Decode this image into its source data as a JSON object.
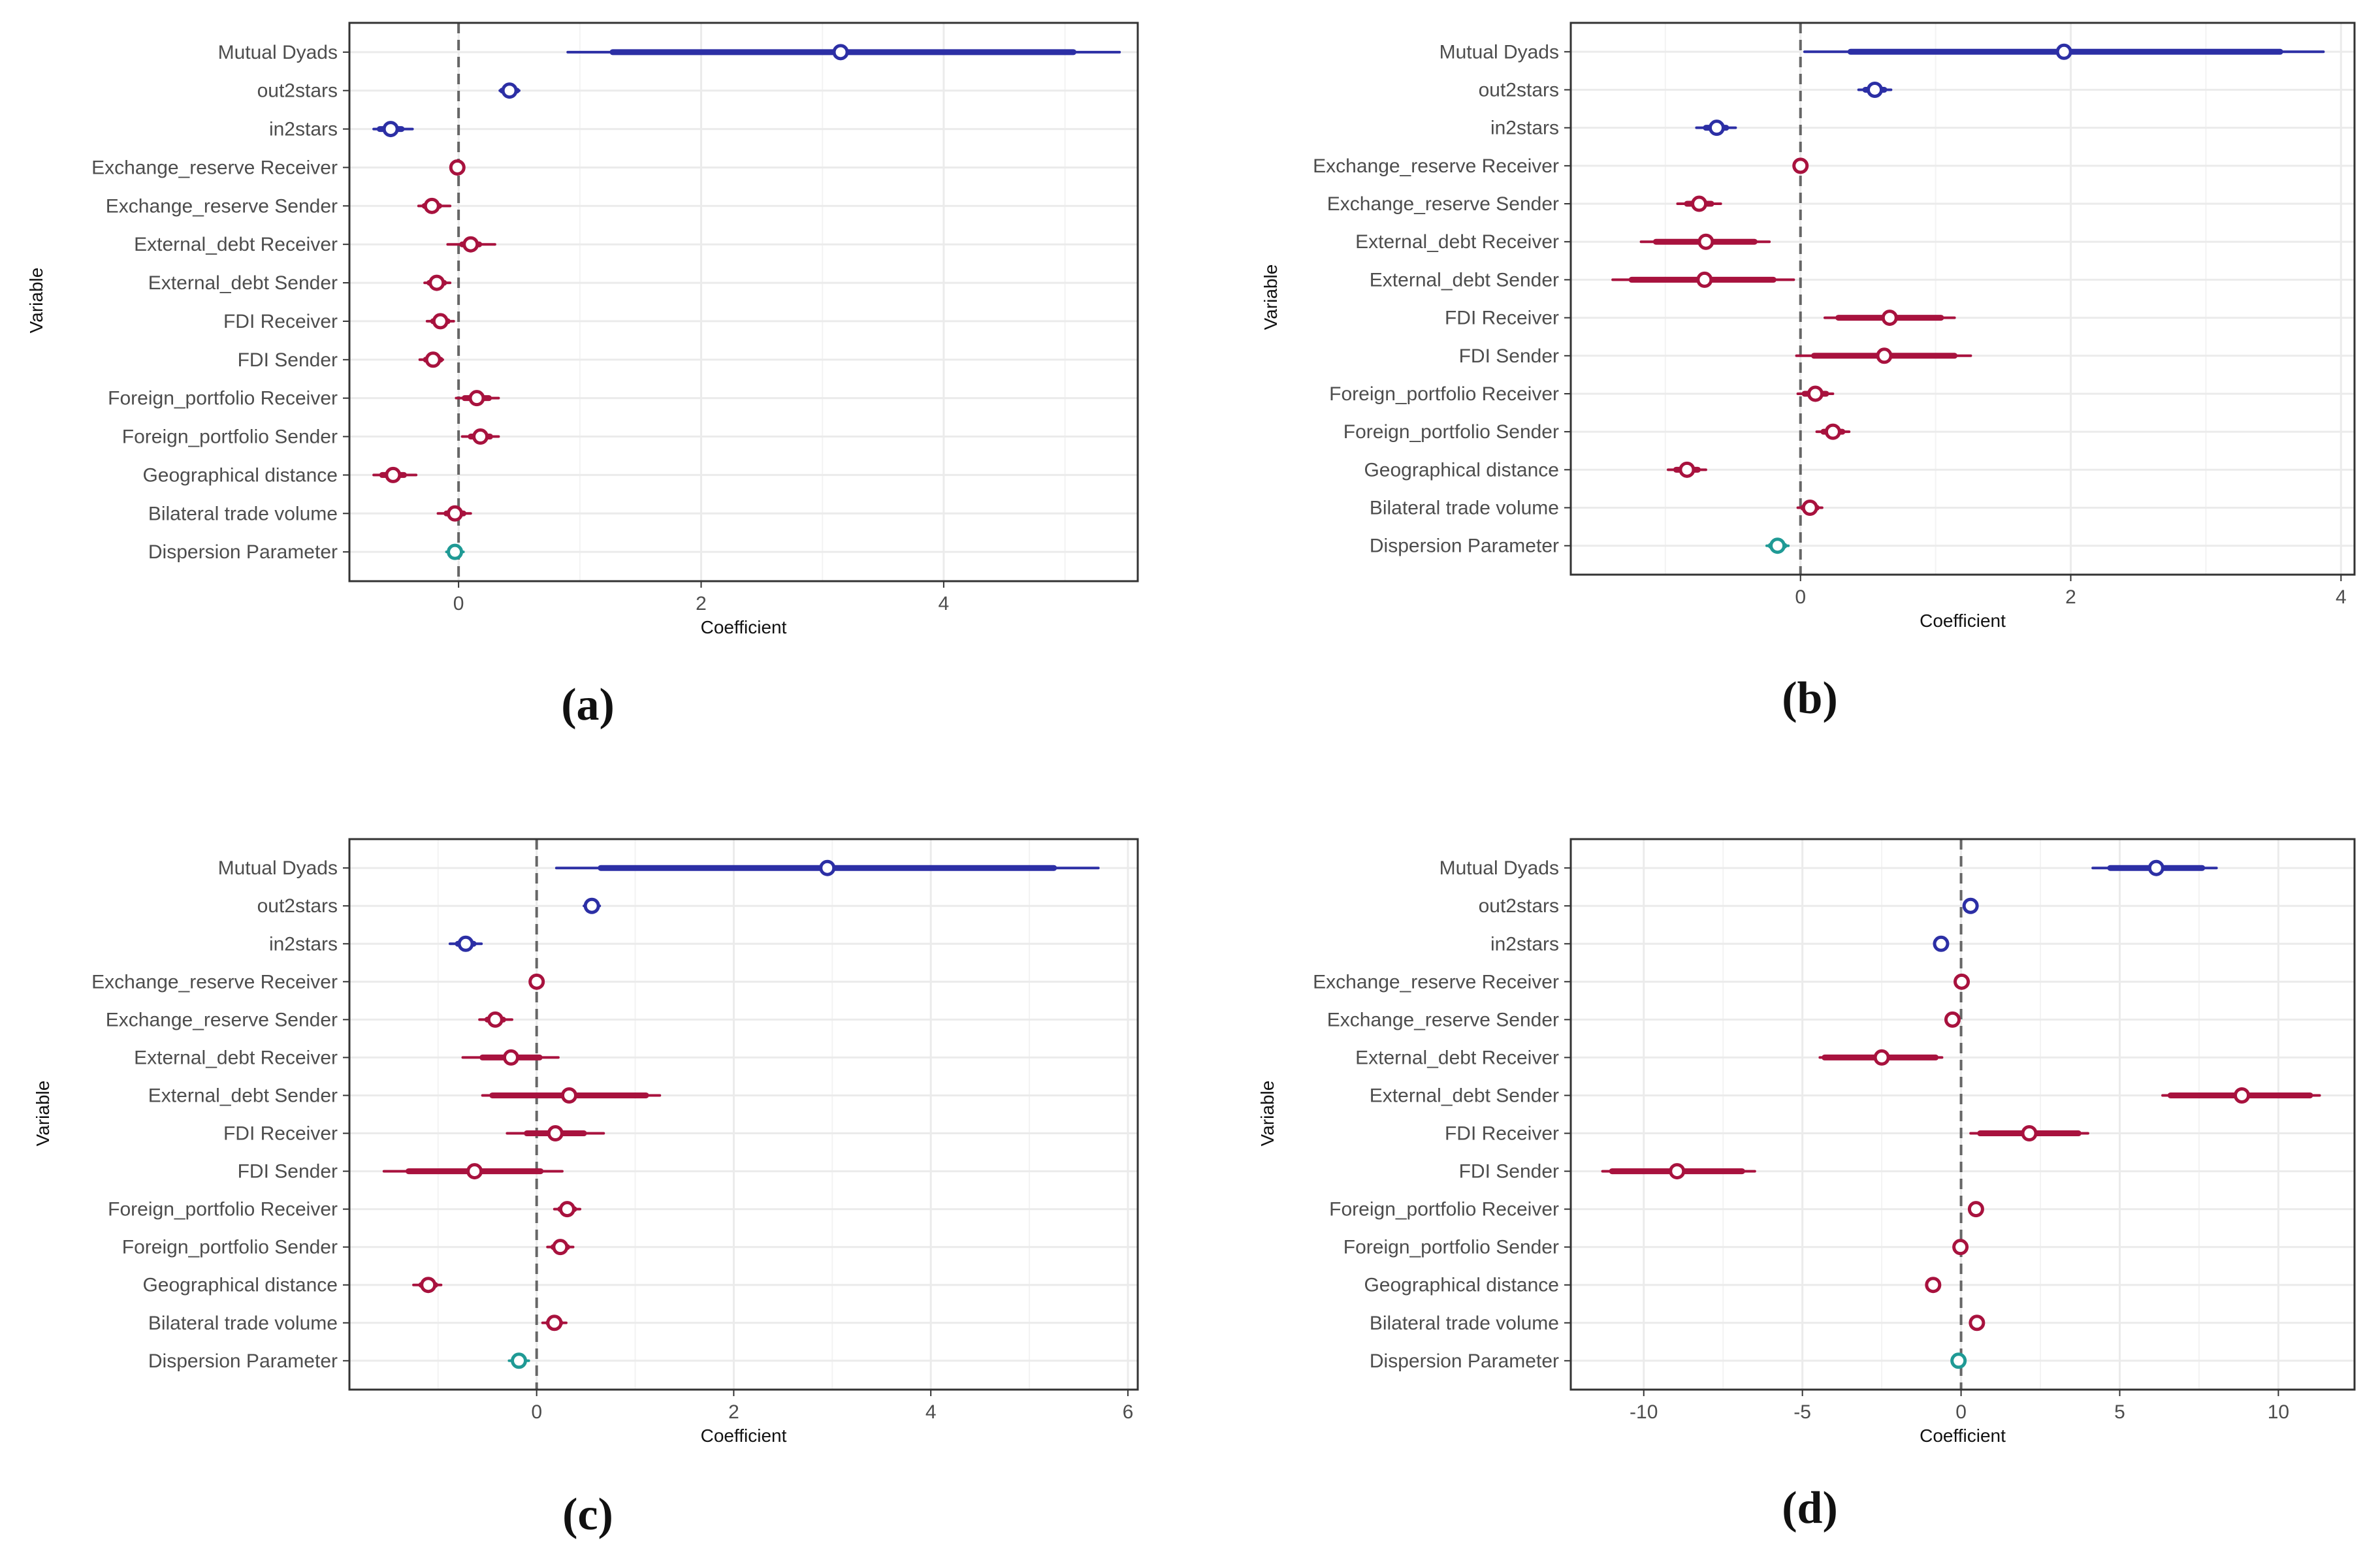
{
  "colors": {
    "network": "#2C2FA5",
    "covariate": "#A8123E",
    "dispersion": "#1F9A95",
    "grid": "#EBEBEB",
    "zero_line": "#666666",
    "axis_text": "#4D4D4D"
  },
  "chart_data": [
    {
      "panel": "(a)",
      "type": "forest",
      "title": "",
      "xlabel": "Coefficient",
      "ylabel": "Variable",
      "xlim": [
        -0.9,
        5.6
      ],
      "xticks": [
        0,
        2,
        4
      ],
      "grid": true,
      "categories": [
        "Mutual Dyads",
        "out2stars",
        "in2stars",
        "Exchange_reserve Receiver",
        "Exchange_reserve Sender",
        "External_debt Receiver",
        "External_debt Sender",
        "FDI Receiver",
        "FDI Sender",
        "Foreign_portfolio Receiver",
        "Foreign_portfolio Sender",
        "Geographical distance",
        "Bilateral trade volume",
        "Dispersion Parameter"
      ],
      "groups": [
        "network",
        "network",
        "network",
        "covariate",
        "covariate",
        "covariate",
        "covariate",
        "covariate",
        "covariate",
        "covariate",
        "covariate",
        "covariate",
        "covariate",
        "dispersion"
      ],
      "estimates": [
        3.15,
        0.42,
        -0.56,
        -0.01,
        -0.22,
        0.1,
        -0.18,
        -0.15,
        -0.21,
        0.15,
        0.18,
        -0.54,
        -0.03,
        -0.03
      ],
      "ci_inner": [
        [
          1.27,
          5.07
        ],
        [
          0.36,
          0.48
        ],
        [
          -0.65,
          -0.47
        ],
        [
          -0.02,
          0.0
        ],
        [
          -0.28,
          -0.16
        ],
        [
          0.03,
          0.17
        ],
        [
          -0.24,
          -0.12
        ],
        [
          -0.21,
          -0.09
        ],
        [
          -0.27,
          -0.15
        ],
        [
          0.05,
          0.25
        ],
        [
          0.1,
          0.26
        ],
        [
          -0.63,
          -0.45
        ],
        [
          -0.1,
          0.04
        ],
        [
          -0.07,
          0.01
        ]
      ],
      "ci_outer": [
        [
          0.9,
          5.45
        ],
        [
          0.34,
          0.5
        ],
        [
          -0.7,
          -0.38
        ],
        [
          -0.03,
          0.01
        ],
        [
          -0.33,
          -0.07
        ],
        [
          -0.09,
          0.3
        ],
        [
          -0.28,
          -0.07
        ],
        [
          -0.26,
          -0.04
        ],
        [
          -0.32,
          -0.13
        ],
        [
          -0.02,
          0.33
        ],
        [
          0.03,
          0.33
        ],
        [
          -0.7,
          -0.35
        ],
        [
          -0.17,
          0.1
        ],
        [
          -0.1,
          0.04
        ]
      ],
      "zero_line": 0
    },
    {
      "panel": "(b)",
      "type": "forest",
      "title": "",
      "xlabel": "Coefficient",
      "ylabel": "Variable",
      "xlim": [
        -1.7,
        4.1
      ],
      "xticks": [
        0,
        2,
        4
      ],
      "grid": true,
      "categories": [
        "Mutual Dyads",
        "out2stars",
        "in2stars",
        "Exchange_reserve Receiver",
        "Exchange_reserve Sender",
        "External_debt Receiver",
        "External_debt Sender",
        "FDI Receiver",
        "FDI Sender",
        "Foreign_portfolio Receiver",
        "Foreign_portfolio Sender",
        "Geographical distance",
        "Bilateral trade volume",
        "Dispersion Parameter"
      ],
      "groups": [
        "network",
        "network",
        "network",
        "covariate",
        "covariate",
        "covariate",
        "covariate",
        "covariate",
        "covariate",
        "covariate",
        "covariate",
        "covariate",
        "covariate",
        "dispersion"
      ],
      "estimates": [
        1.95,
        0.55,
        -0.62,
        0.0,
        -0.75,
        -0.7,
        -0.71,
        0.66,
        0.62,
        0.11,
        0.24,
        -0.84,
        0.07,
        -0.17
      ],
      "ci_inner": [
        [
          0.37,
          3.55
        ],
        [
          0.48,
          0.62
        ],
        [
          -0.7,
          -0.55
        ],
        [
          -0.01,
          0.01
        ],
        [
          -0.84,
          -0.66
        ],
        [
          -1.07,
          -0.34
        ],
        [
          -1.25,
          -0.2
        ],
        [
          0.28,
          1.04
        ],
        [
          0.1,
          1.14
        ],
        [
          0.03,
          0.19
        ],
        [
          0.17,
          0.31
        ],
        [
          -0.92,
          -0.76
        ],
        [
          0.02,
          0.12
        ],
        [
          -0.22,
          -0.12
        ]
      ],
      "ci_outer": [
        [
          0.03,
          3.87
        ],
        [
          0.43,
          0.67
        ],
        [
          -0.77,
          -0.48
        ],
        [
          -0.02,
          0.02
        ],
        [
          -0.91,
          -0.59
        ],
        [
          -1.18,
          -0.23
        ],
        [
          -1.39,
          -0.05
        ],
        [
          0.18,
          1.14
        ],
        [
          -0.03,
          1.26
        ],
        [
          -0.02,
          0.24
        ],
        [
          0.12,
          0.36
        ],
        [
          -0.98,
          -0.7
        ],
        [
          -0.02,
          0.16
        ],
        [
          -0.25,
          -0.09
        ]
      ],
      "zero_line": 0
    },
    {
      "panel": "(c)",
      "type": "forest",
      "title": "",
      "xlabel": "Coefficient",
      "ylabel": "Variable",
      "xlim": [
        -1.9,
        6.1
      ],
      "xticks": [
        0,
        2,
        4,
        6
      ],
      "grid": true,
      "categories": [
        "Mutual Dyads",
        "out2stars",
        "in2stars",
        "Exchange_reserve Receiver",
        "Exchange_reserve Sender",
        "External_debt Receiver",
        "External_debt Sender",
        "FDI Receiver",
        "FDI Sender",
        "Foreign_portfolio Receiver",
        "Foreign_portfolio Sender",
        "Geographical distance",
        "Bilateral trade volume",
        "Dispersion Parameter"
      ],
      "groups": [
        "network",
        "network",
        "network",
        "covariate",
        "covariate",
        "covariate",
        "covariate",
        "covariate",
        "covariate",
        "covariate",
        "covariate",
        "covariate",
        "covariate",
        "dispersion"
      ],
      "estimates": [
        2.95,
        0.56,
        -0.72,
        0.0,
        -0.42,
        -0.26,
        0.33,
        0.19,
        -0.63,
        0.31,
        0.24,
        -1.1,
        0.18,
        -0.18
      ],
      "ci_inner": [
        [
          0.65,
          5.25
        ],
        [
          0.51,
          0.61
        ],
        [
          -0.8,
          -0.64
        ],
        [
          -0.01,
          0.01
        ],
        [
          -0.5,
          -0.34
        ],
        [
          -0.55,
          0.03
        ],
        [
          -0.45,
          1.11
        ],
        [
          -0.1,
          0.48
        ],
        [
          -1.3,
          0.04
        ],
        [
          0.24,
          0.38
        ],
        [
          0.17,
          0.31
        ],
        [
          -1.17,
          -1.03
        ],
        [
          0.12,
          0.24
        ],
        [
          -0.23,
          -0.13
        ]
      ],
      "ci_outer": [
        [
          0.2,
          5.7
        ],
        [
          0.48,
          0.64
        ],
        [
          -0.88,
          -0.56
        ],
        [
          -0.02,
          0.02
        ],
        [
          -0.58,
          -0.25
        ],
        [
          -0.75,
          0.22
        ],
        [
          -0.55,
          1.25
        ],
        [
          -0.3,
          0.68
        ],
        [
          -1.55,
          0.26
        ],
        [
          0.18,
          0.44
        ],
        [
          0.11,
          0.37
        ],
        [
          -1.25,
          -0.97
        ],
        [
          0.06,
          0.3
        ],
        [
          -0.28,
          -0.08
        ]
      ],
      "zero_line": 0
    },
    {
      "panel": "(d)",
      "type": "forest",
      "title": "",
      "xlabel": "Coefficient",
      "ylabel": "Variable",
      "xlim": [
        -12.3,
        12.4
      ],
      "xticks": [
        -10,
        -5,
        0,
        5,
        10
      ],
      "grid": true,
      "categories": [
        "Mutual Dyads",
        "out2stars",
        "in2stars",
        "Exchange_reserve Receiver",
        "Exchange_reserve Sender",
        "External_debt Receiver",
        "External_debt Sender",
        "FDI Receiver",
        "FDI Sender",
        "Foreign_portfolio Receiver",
        "Foreign_portfolio Sender",
        "Geographical distance",
        "Bilateral trade volume",
        "Dispersion Parameter"
      ],
      "groups": [
        "network",
        "network",
        "network",
        "covariate",
        "covariate",
        "covariate",
        "covariate",
        "covariate",
        "covariate",
        "covariate",
        "covariate",
        "covariate",
        "covariate",
        "dispersion"
      ],
      "estimates": [
        6.15,
        0.3,
        -0.63,
        0.02,
        -0.27,
        -2.5,
        8.85,
        2.15,
        -8.95,
        0.47,
        -0.02,
        -0.88,
        0.5,
        -0.08
      ],
      "ci_inner": [
        [
          4.7,
          7.6
        ],
        [
          0.22,
          0.38
        ],
        [
          -0.72,
          -0.54
        ],
        [
          -0.05,
          0.09
        ],
        [
          -0.35,
          -0.19
        ],
        [
          -4.3,
          -0.8
        ],
        [
          6.6,
          11.0
        ],
        [
          0.6,
          3.7
        ],
        [
          -11.0,
          -6.9
        ],
        [
          0.4,
          0.54
        ],
        [
          -0.08,
          0.04
        ],
        [
          -0.96,
          -0.8
        ],
        [
          0.43,
          0.57
        ],
        [
          -0.14,
          -0.02
        ]
      ],
      "ci_outer": [
        [
          4.15,
          8.05
        ],
        [
          0.18,
          0.42
        ],
        [
          -0.78,
          -0.48
        ],
        [
          -0.1,
          0.14
        ],
        [
          -0.41,
          -0.13
        ],
        [
          -4.45,
          -0.6
        ],
        [
          6.35,
          11.3
        ],
        [
          0.3,
          4.0
        ],
        [
          -11.3,
          -6.5
        ],
        [
          0.34,
          0.6
        ],
        [
          -0.13,
          0.09
        ],
        [
          -1.02,
          -0.74
        ],
        [
          0.37,
          0.63
        ],
        [
          -0.19,
          0.03
        ]
      ],
      "zero_line": 0
    }
  ]
}
